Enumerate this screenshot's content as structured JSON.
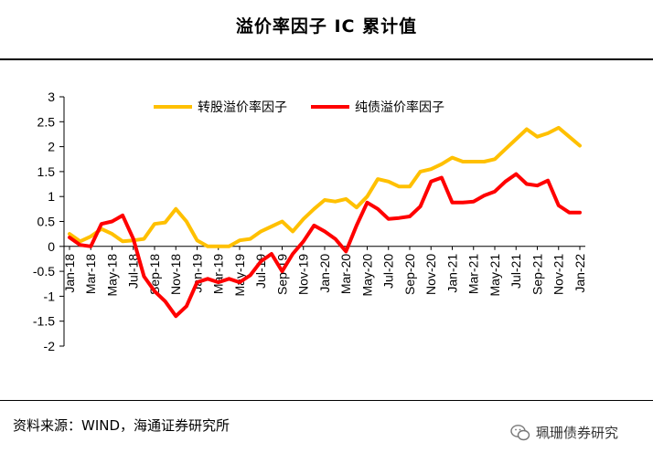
{
  "title": "溢价率因子 IC 累计值",
  "source": "资料来源：WIND，海通证券研究所",
  "watermark": "珮珊债券研究",
  "watermark_icon": "wechat-icon",
  "colors": {
    "series1": "#FFC000",
    "series2": "#FF0000"
  },
  "chart_data": {
    "type": "line",
    "ylim": [
      -2,
      3
    ],
    "yticks": [
      "3",
      "2.5",
      "2",
      "1.5",
      "1",
      "0.5",
      "0",
      "-0.5",
      "-1",
      "-1.5",
      "-2"
    ],
    "ytick_values": [
      3,
      2.5,
      2,
      1.5,
      1,
      0.5,
      0,
      -0.5,
      -1,
      -1.5,
      -2
    ],
    "x": [
      "Jan-18",
      "Feb-18",
      "Mar-18",
      "Apr-18",
      "May-18",
      "Jun-18",
      "Jul-18",
      "Aug-18",
      "Sep-18",
      "Oct-18",
      "Nov-18",
      "Dec-18",
      "Jan-19",
      "Feb-19",
      "Mar-19",
      "Apr-19",
      "May-19",
      "Jun-19",
      "Jul-19",
      "Aug-19",
      "Sep-19",
      "Oct-19",
      "Nov-19",
      "Dec-19",
      "Jan-20",
      "Feb-20",
      "Mar-20",
      "Apr-20",
      "May-20",
      "Jun-20",
      "Jul-20",
      "Aug-20",
      "Sep-20",
      "Oct-20",
      "Nov-20",
      "Dec-20",
      "Jan-21",
      "Feb-21",
      "Mar-21",
      "Apr-21",
      "May-21",
      "Jun-21",
      "Jul-21",
      "Aug-21",
      "Sep-21",
      "Oct-21",
      "Nov-21",
      "Dec-21",
      "Jan-22"
    ],
    "xtick_labels": [
      "Jan-18",
      "Mar-18",
      "May-18",
      "Jul-18",
      "Sep-18",
      "Nov-18",
      "Jan-19",
      "Mar-19",
      "May-19",
      "Jul-19",
      "Sep-19",
      "Nov-19",
      "Jan-20",
      "Mar-20",
      "May-20",
      "Jul-20",
      "Sep-20",
      "Nov-20",
      "Jan-21",
      "Mar-21",
      "May-21",
      "Jul-21",
      "Sep-21",
      "Nov-21",
      "Jan-22"
    ],
    "legend_position": "top",
    "series": [
      {
        "name": "转股溢价率因子",
        "values": [
          0.25,
          0.1,
          0.2,
          0.35,
          0.25,
          0.1,
          0.12,
          0.15,
          0.45,
          0.48,
          0.75,
          0.5,
          0.12,
          0.0,
          0.0,
          0.0,
          0.12,
          0.15,
          0.3,
          0.4,
          0.5,
          0.3,
          0.55,
          0.75,
          0.93,
          0.9,
          0.95,
          0.78,
          1.0,
          1.35,
          1.3,
          1.2,
          1.2,
          1.5,
          1.55,
          1.65,
          1.78,
          1.7,
          1.7,
          1.7,
          1.75,
          1.95,
          2.15,
          2.35,
          2.2,
          2.27,
          2.38,
          2.2,
          2.02
        ]
      },
      {
        "name": "纯债溢价率因子",
        "values": [
          0.18,
          0.03,
          0.0,
          0.45,
          0.5,
          0.62,
          0.15,
          -0.6,
          -0.9,
          -1.1,
          -1.4,
          -1.2,
          -0.72,
          -0.65,
          -0.72,
          -0.65,
          -0.72,
          -0.58,
          -0.3,
          -0.15,
          -0.5,
          -0.15,
          0.1,
          0.42,
          0.3,
          0.15,
          -0.1,
          0.42,
          0.88,
          0.75,
          0.55,
          0.57,
          0.6,
          0.8,
          1.3,
          1.38,
          0.88,
          0.88,
          0.9,
          1.02,
          1.1,
          1.3,
          1.45,
          1.25,
          1.22,
          1.32,
          0.82,
          0.68,
          0.68
        ]
      }
    ]
  }
}
